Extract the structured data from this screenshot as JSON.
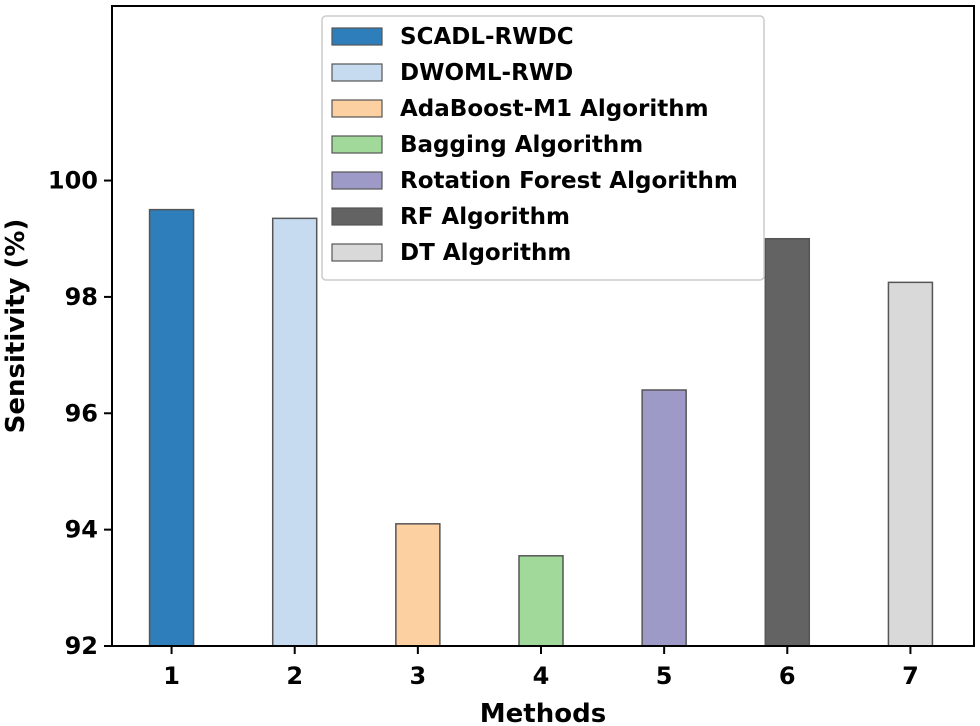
{
  "chart_data": {
    "type": "bar",
    "categories": [
      "1",
      "2",
      "3",
      "4",
      "5",
      "6",
      "7"
    ],
    "series": [
      {
        "name": "SCADL-RWDC",
        "color": "#2e7ebc",
        "values": [
          99.5,
          null,
          null,
          null,
          null,
          null,
          null
        ]
      },
      {
        "name": "DWOML-RWD",
        "color": "#c6dbef",
        "values": [
          null,
          99.35,
          null,
          null,
          null,
          null,
          null
        ]
      },
      {
        "name": "AdaBoost-M1 Algorithm",
        "color": "#fdd0a2",
        "values": [
          null,
          null,
          94.1,
          null,
          null,
          null,
          null
        ]
      },
      {
        "name": "Bagging Algorithm",
        "color": "#a1d99b",
        "values": [
          null,
          null,
          null,
          93.55,
          null,
          null,
          null
        ]
      },
      {
        "name": "Rotation Forest Algorithm",
        "color": "#9e9ac8",
        "values": [
          null,
          null,
          null,
          null,
          96.4,
          null,
          null
        ]
      },
      {
        "name": "RF Algorithm",
        "color": "#636363",
        "values": [
          null,
          null,
          null,
          null,
          null,
          99.0,
          null
        ]
      },
      {
        "name": "DT Algorithm",
        "color": "#d9d9d9",
        "values": [
          null,
          null,
          null,
          null,
          null,
          null,
          98.25
        ]
      }
    ],
    "xlabel": "Methods",
    "ylabel": "Sensitivity (%)",
    "ylim": [
      92,
      103
    ],
    "yticks": [
      92,
      94,
      96,
      98,
      100
    ],
    "legend_position": "top-center",
    "grid": false
  }
}
